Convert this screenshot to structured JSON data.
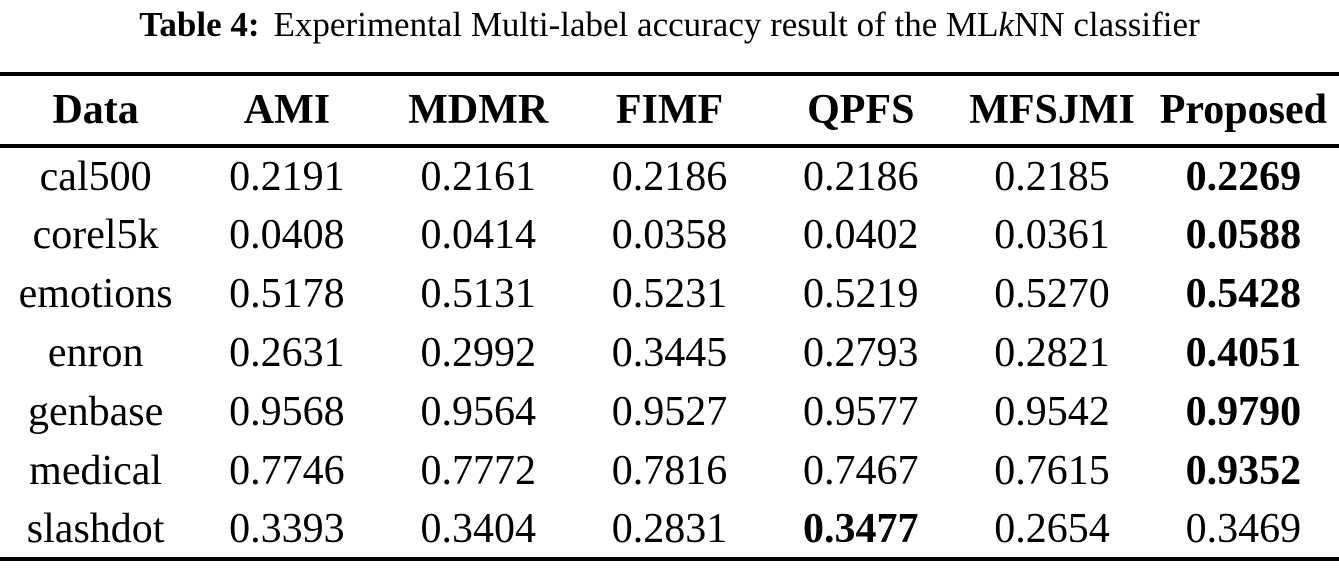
{
  "caption": {
    "label": "Table 4:",
    "before_k": "Experimental Multi-label accuracy result of the ML",
    "k": "k",
    "after_k": "NN classifier"
  },
  "table": {
    "columns": [
      "Data",
      "AMI",
      "MDMR",
      "FIMF",
      "QPFS",
      "MFSJMI",
      "Proposed"
    ],
    "rows": [
      {
        "dataset": "cal500",
        "values": [
          "0.2191",
          "0.2161",
          "0.2186",
          "0.2186",
          "0.2185",
          "0.2269"
        ],
        "bold_index": 5
      },
      {
        "dataset": "corel5k",
        "values": [
          "0.0408",
          "0.0414",
          "0.0358",
          "0.0402",
          "0.0361",
          "0.0588"
        ],
        "bold_index": 5
      },
      {
        "dataset": "emotions",
        "values": [
          "0.5178",
          "0.5131",
          "0.5231",
          "0.5219",
          "0.5270",
          "0.5428"
        ],
        "bold_index": 5
      },
      {
        "dataset": "enron",
        "values": [
          "0.2631",
          "0.2992",
          "0.3445",
          "0.2793",
          "0.2821",
          "0.4051"
        ],
        "bold_index": 5
      },
      {
        "dataset": "genbase",
        "values": [
          "0.9568",
          "0.9564",
          "0.9527",
          "0.9577",
          "0.9542",
          "0.9790"
        ],
        "bold_index": 5
      },
      {
        "dataset": "medical",
        "values": [
          "0.7746",
          "0.7772",
          "0.7816",
          "0.7467",
          "0.7615",
          "0.9352"
        ],
        "bold_index": 5
      },
      {
        "dataset": "slashdot",
        "values": [
          "0.3393",
          "0.3404",
          "0.2831",
          "0.3477",
          "0.2654",
          "0.3469"
        ],
        "bold_index": 3
      }
    ],
    "text_color": "#000000",
    "rule_color": "#000000",
    "background": "#ffffff"
  }
}
